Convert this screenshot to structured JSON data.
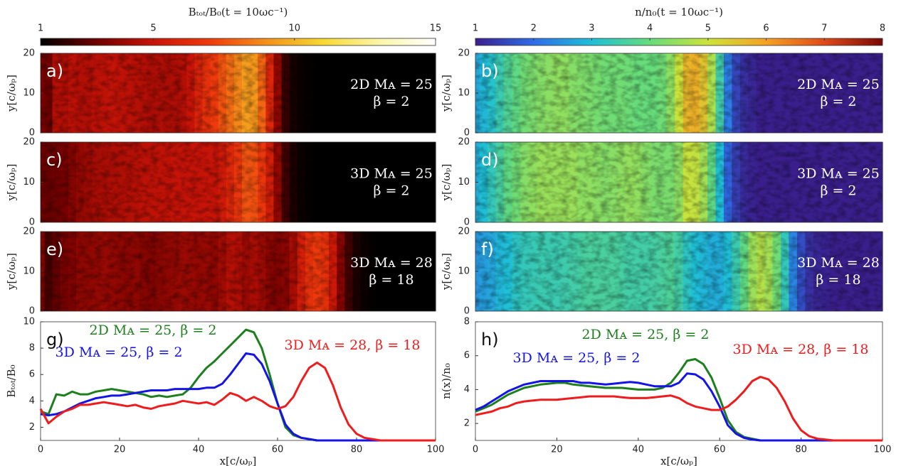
{
  "chart_data": [
    {
      "type": "colorbar",
      "title": "Bₜₒₜ/B₀(t = 10ωc⁻¹)",
      "xlim": [
        1,
        15
      ],
      "xticks": [
        1,
        5,
        10,
        15
      ],
      "colors": [
        "#000000",
        "#6e0000",
        "#c81408",
        "#ee3a0c",
        "#f4901a",
        "#f7d830",
        "#fbf6a8",
        "#ffffff"
      ]
    },
    {
      "type": "colorbar",
      "title": "n/n₀(t = 10ωc⁻¹)",
      "xlim": [
        1,
        8
      ],
      "xticks": [
        1,
        2,
        3,
        4,
        5,
        6,
        7,
        8
      ],
      "colors": [
        "#3a1f8c",
        "#2f6ce8",
        "#1fbfd6",
        "#66dc7a",
        "#cde33a",
        "#f5a223",
        "#de4a18",
        "#7a0804"
      ]
    },
    {
      "type": "heatmap",
      "label": "a)",
      "annotation": [
        "2D Mᴀ = 25",
        "β = 2"
      ],
      "ylabel": "y[c/ωₚ]",
      "xlim": [
        0,
        100
      ],
      "ylim": [
        0,
        20
      ],
      "yticks": [
        0,
        10,
        20
      ]
    },
    {
      "type": "heatmap",
      "label": "b)",
      "annotation": [
        "2D Mᴀ = 25",
        "β = 2"
      ],
      "ylabel": "y[c/ωₚ]",
      "xlim": [
        0,
        100
      ],
      "ylim": [
        0,
        20
      ],
      "yticks": [
        0,
        10,
        20
      ]
    },
    {
      "type": "heatmap",
      "label": "c)",
      "annotation": [
        "3D Mᴀ = 25",
        "β = 2"
      ],
      "ylabel": "y[c/ωₚ]",
      "xlim": [
        0,
        100
      ],
      "ylim": [
        0,
        20
      ],
      "yticks": [
        0,
        10,
        20
      ]
    },
    {
      "type": "heatmap",
      "label": "d)",
      "annotation": [
        "3D Mᴀ = 25",
        "β = 2"
      ],
      "ylabel": "y[c/ωₚ]",
      "xlim": [
        0,
        100
      ],
      "ylim": [
        0,
        20
      ],
      "yticks": [
        0,
        10,
        20
      ]
    },
    {
      "type": "heatmap",
      "label": "e)",
      "annotation": [
        "3D Mᴀ = 28",
        "β = 18"
      ],
      "ylabel": "y[c/ωₚ]",
      "xlim": [
        0,
        100
      ],
      "ylim": [
        0,
        20
      ],
      "yticks": [
        0,
        10,
        20
      ]
    },
    {
      "type": "heatmap",
      "label": "f)",
      "annotation": [
        "3D Mᴀ = 28",
        "β = 18"
      ],
      "ylabel": "y[c/ωₚ]",
      "xlim": [
        0,
        100
      ],
      "ylim": [
        0,
        20
      ],
      "yticks": [
        0,
        10,
        20
      ]
    },
    {
      "type": "line",
      "label": "g)",
      "ylabel": "Bₜₒₜ/B₀",
      "xlabel": "x[c/ωₚ]",
      "xlim": [
        0,
        100
      ],
      "ylim": [
        1,
        10
      ],
      "xticks": [
        0,
        20,
        40,
        60,
        80,
        100
      ],
      "yticks": [
        2,
        4,
        6,
        8,
        10
      ],
      "x": [
        0,
        2,
        4,
        6,
        8,
        10,
        12,
        14,
        16,
        18,
        20,
        22,
        24,
        26,
        28,
        30,
        32,
        34,
        36,
        38,
        40,
        42,
        44,
        46,
        48,
        50,
        52,
        54,
        56,
        58,
        60,
        62,
        64,
        66,
        68,
        70,
        72,
        74,
        76,
        78,
        80,
        82,
        84,
        86,
        88,
        90,
        92,
        94,
        96,
        98,
        100
      ],
      "series": [
        {
          "name": "2D Mᴀ = 25, β = 2",
          "color": "#1e7f1e",
          "values": [
            3.2,
            3.0,
            4.5,
            4.4,
            4.7,
            4.5,
            4.5,
            4.7,
            4.8,
            4.9,
            4.8,
            4.7,
            4.6,
            4.5,
            4.3,
            4.4,
            4.3,
            4.4,
            4.5,
            5.0,
            5.8,
            6.5,
            7.0,
            7.6,
            8.2,
            8.8,
            9.4,
            9.2,
            8.0,
            6.0,
            3.8,
            2.0,
            1.4,
            1.2,
            1.1,
            1.0,
            1.0,
            1.0,
            1.0,
            1.0,
            1.0,
            1.0,
            1.0,
            1.0,
            1.0,
            1.0,
            1.0,
            1.0,
            1.0,
            1.0,
            1.0
          ]
        },
        {
          "name": "3D Mᴀ = 25, β = 2",
          "color": "#1414e6",
          "values": [
            3.0,
            2.9,
            3.0,
            3.2,
            3.5,
            3.8,
            4.0,
            4.2,
            4.3,
            4.4,
            4.4,
            4.5,
            4.6,
            4.7,
            4.8,
            4.8,
            4.8,
            4.9,
            4.9,
            4.9,
            4.9,
            5.0,
            5.0,
            5.3,
            6.0,
            6.8,
            7.6,
            7.5,
            6.8,
            5.5,
            3.8,
            2.2,
            1.5,
            1.2,
            1.1,
            1.0,
            1.0,
            1.0,
            1.0,
            1.0,
            1.0,
            1.0,
            1.0,
            1.0,
            1.0,
            1.0,
            1.0,
            1.0,
            1.0,
            1.0,
            1.0
          ]
        },
        {
          "name": "3D Mᴀ = 28, β = 18",
          "color": "#ee1c1c",
          "values": [
            3.4,
            2.3,
            2.8,
            3.2,
            3.4,
            3.7,
            3.7,
            3.8,
            3.9,
            3.8,
            3.7,
            3.6,
            3.7,
            3.5,
            3.4,
            3.6,
            3.7,
            3.8,
            4.0,
            3.9,
            3.8,
            3.9,
            3.7,
            4.1,
            4.6,
            4.4,
            4.0,
            4.3,
            4.0,
            3.6,
            3.4,
            3.6,
            4.3,
            5.5,
            6.5,
            6.9,
            6.5,
            5.2,
            3.5,
            2.2,
            1.5,
            1.2,
            1.1,
            1.0,
            1.0,
            1.0,
            1.0,
            1.0,
            1.0,
            1.0,
            1.0
          ]
        }
      ]
    },
    {
      "type": "line",
      "label": "h)",
      "ylabel": "n(x)/n₀",
      "xlabel": "x[c/ωₚ]",
      "xlim": [
        0,
        100
      ],
      "ylim": [
        1,
        8
      ],
      "xticks": [
        0,
        20,
        40,
        60,
        80,
        100
      ],
      "yticks": [
        2,
        4,
        6,
        8
      ],
      "x": [
        0,
        2,
        4,
        6,
        8,
        10,
        12,
        14,
        16,
        18,
        20,
        22,
        24,
        26,
        28,
        30,
        32,
        34,
        36,
        38,
        40,
        42,
        44,
        46,
        48,
        50,
        52,
        54,
        56,
        58,
        60,
        62,
        64,
        66,
        68,
        70,
        72,
        74,
        76,
        78,
        80,
        82,
        84,
        86,
        88,
        90,
        92,
        94,
        96,
        98,
        100
      ],
      "series": [
        {
          "name": "2D Mᴀ = 25, β = 2",
          "color": "#1e7f1e",
          "values": [
            2.7,
            2.9,
            3.1,
            3.4,
            3.7,
            3.9,
            4.1,
            4.2,
            4.3,
            4.35,
            4.4,
            4.4,
            4.3,
            4.25,
            4.2,
            4.15,
            4.1,
            4.1,
            4.1,
            4.05,
            4.0,
            4.0,
            4.0,
            4.1,
            4.4,
            5.0,
            5.7,
            5.8,
            5.5,
            4.7,
            3.5,
            2.2,
            1.5,
            1.2,
            1.1,
            1.0,
            1.0,
            1.0,
            1.0,
            1.0,
            1.0,
            1.0,
            1.0,
            1.0,
            1.0,
            1.0,
            1.0,
            1.0,
            1.0,
            1.0,
            1.0
          ]
        },
        {
          "name": "3D Mᴀ = 25, β = 2",
          "color": "#1414e6",
          "values": [
            2.8,
            3.0,
            3.3,
            3.6,
            3.9,
            4.1,
            4.3,
            4.4,
            4.5,
            4.5,
            4.5,
            4.5,
            4.5,
            4.4,
            4.4,
            4.35,
            4.3,
            4.35,
            4.4,
            4.45,
            4.4,
            4.3,
            4.2,
            4.2,
            4.2,
            4.4,
            4.95,
            4.9,
            4.6,
            3.9,
            3.0,
            1.9,
            1.4,
            1.15,
            1.05,
            1.0,
            1.0,
            1.0,
            1.0,
            1.0,
            1.0,
            1.0,
            1.0,
            1.0,
            1.0,
            1.0,
            1.0,
            1.0,
            1.0,
            1.0,
            1.0
          ]
        },
        {
          "name": "3D Mᴀ = 28, β = 18",
          "color": "#ee1c1c",
          "values": [
            2.5,
            2.6,
            2.7,
            2.9,
            3.0,
            3.2,
            3.3,
            3.35,
            3.4,
            3.4,
            3.4,
            3.45,
            3.5,
            3.55,
            3.6,
            3.6,
            3.6,
            3.6,
            3.55,
            3.5,
            3.5,
            3.5,
            3.55,
            3.6,
            3.65,
            3.5,
            3.2,
            3.0,
            2.9,
            2.8,
            2.8,
            3.0,
            3.4,
            3.9,
            4.5,
            4.75,
            4.6,
            4.1,
            3.3,
            2.3,
            1.6,
            1.25,
            1.1,
            1.05,
            1.0,
            1.0,
            1.0,
            1.0,
            1.0,
            1.0,
            1.0
          ]
        }
      ]
    }
  ]
}
